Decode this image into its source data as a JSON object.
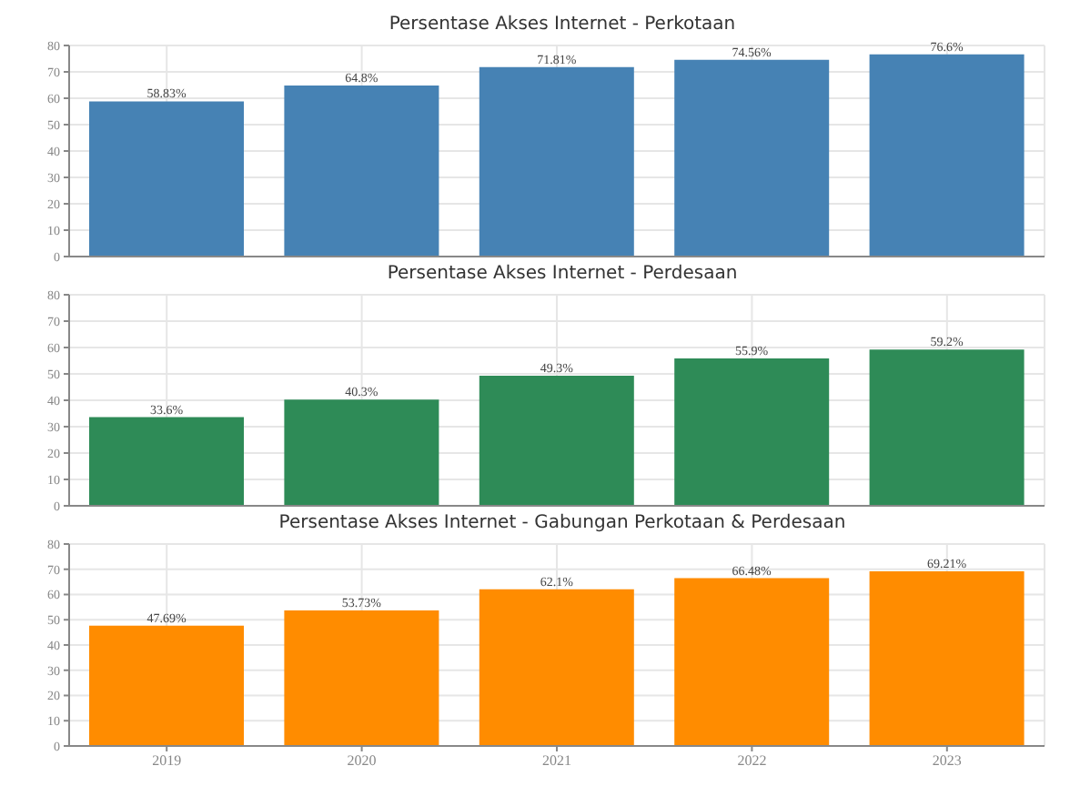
{
  "chart_data": [
    {
      "type": "bar",
      "title": "Persentase Akses Internet - Perkotaan",
      "categories": [
        "2019",
        "2020",
        "2021",
        "2022",
        "2023"
      ],
      "values": [
        58.83,
        64.8,
        71.81,
        74.56,
        76.6
      ],
      "value_labels": [
        "58.83%",
        "64.8%",
        "71.81%",
        "74.56%",
        "76.6%"
      ],
      "color": "#4682b4",
      "ylim": [
        0,
        80
      ],
      "yticks": [
        0,
        10,
        20,
        30,
        40,
        50,
        60,
        70,
        80
      ],
      "grid": true,
      "tick_labels": "y"
    },
    {
      "type": "bar",
      "title": "Persentase Akses Internet - Perdesaan",
      "categories": [
        "2019",
        "2020",
        "2021",
        "2022",
        "2023"
      ],
      "values": [
        33.6,
        40.3,
        49.3,
        55.9,
        59.2
      ],
      "value_labels": [
        "33.6%",
        "40.3%",
        "49.3%",
        "55.9%",
        "59.2%"
      ],
      "color": "#2e8b57",
      "ylim": [
        0,
        80
      ],
      "yticks": [
        0,
        10,
        20,
        30,
        40,
        50,
        60,
        70,
        80
      ],
      "grid": true,
      "tick_labels": "y"
    },
    {
      "type": "bar",
      "title": "Persentase Akses Internet - Gabungan Perkotaan & Perdesaan",
      "categories": [
        "2019",
        "2020",
        "2021",
        "2022",
        "2023"
      ],
      "values": [
        47.69,
        53.73,
        62.1,
        66.48,
        69.21
      ],
      "value_labels": [
        "47.69%",
        "53.73%",
        "62.1%",
        "66.48%",
        "69.21%"
      ],
      "color": "#ff8c00",
      "ylim": [
        0,
        80
      ],
      "yticks": [
        0,
        10,
        20,
        30,
        40,
        50,
        60,
        70,
        80
      ],
      "grid": true
    }
  ]
}
